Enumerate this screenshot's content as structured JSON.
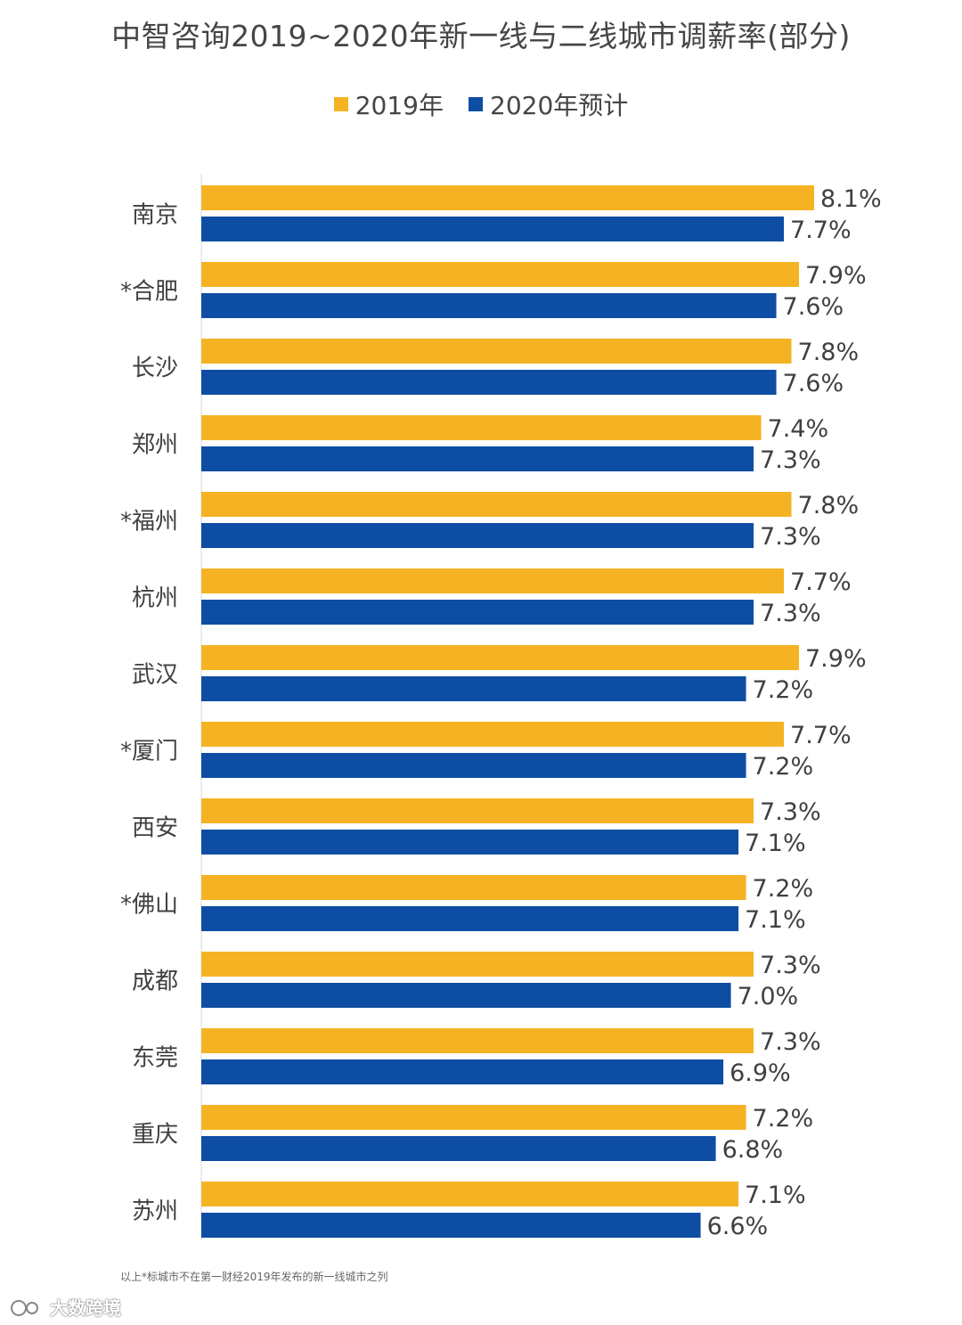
{
  "chart_data": {
    "type": "bar",
    "orientation": "horizontal",
    "title": "中智咨询2019~2020年新一线与二线城市调薪率(部分)",
    "categories": [
      "南京",
      "*合肥",
      "长沙",
      "郑州",
      "*福州",
      "杭州",
      "武汉",
      "*厦门",
      "西安",
      "*佛山",
      "成都",
      "东莞",
      "重庆",
      "苏州"
    ],
    "series": [
      {
        "name": "2019年",
        "color": "#F5B324",
        "values": [
          8.1,
          7.9,
          7.8,
          7.4,
          7.8,
          7.7,
          7.9,
          7.7,
          7.3,
          7.2,
          7.3,
          7.3,
          7.2,
          7.1
        ]
      },
      {
        "name": "2020年预计",
        "color": "#0E4DA4",
        "values": [
          7.7,
          7.6,
          7.6,
          7.3,
          7.3,
          7.3,
          7.2,
          7.2,
          7.1,
          7.1,
          7.0,
          6.9,
          6.8,
          6.6
        ]
      }
    ],
    "value_suffix": "%",
    "xlim": [
      0,
      8.1
    ],
    "legend_position": "top-center",
    "grid": false
  },
  "footnote": "以上*标城市不在第一财经2019年发布的新一线城市之列",
  "watermark": "大数跨境"
}
